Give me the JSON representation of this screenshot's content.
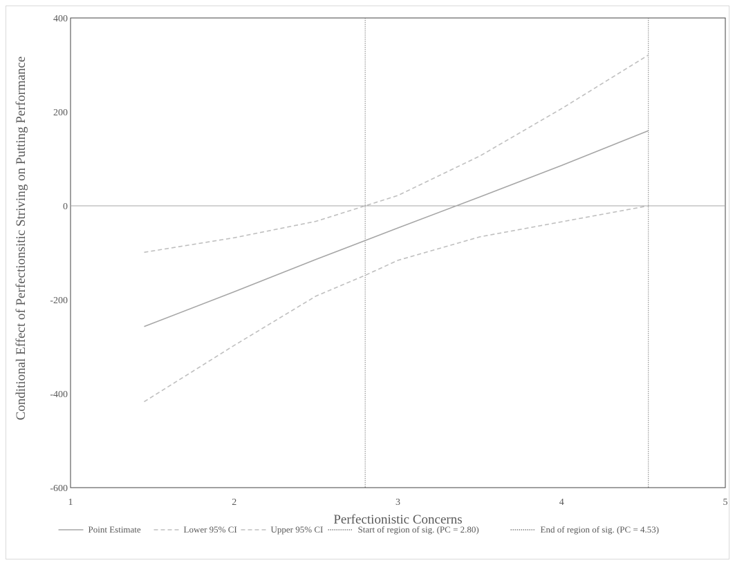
{
  "chart_data": {
    "type": "line",
    "title": "",
    "xlabel": "Perfectionistic Concerns",
    "ylabel": "Conditional Effect of Perfectionsitic Striving on Putting Performance",
    "xlim": [
      1,
      5
    ],
    "ylim": [
      -600,
      400
    ],
    "x_ticks": [
      "1",
      "2",
      "3",
      "4",
      "5"
    ],
    "y_ticks": [
      "400",
      "200",
      "0",
      "-200",
      "-400",
      "-600"
    ],
    "grid": false,
    "zero_line": true,
    "legend_position": "bottom",
    "series": [
      {
        "name": "Point Estimate",
        "style": "solid",
        "color": "#a6a6a6",
        "x": [
          1.45,
          2.0,
          2.5,
          2.8,
          3.0,
          3.5,
          4.0,
          4.53
        ],
        "y": [
          -257,
          -183,
          -114,
          -74,
          -47,
          19,
          86,
          160
        ]
      },
      {
        "name": "Lower 95% CI",
        "style": "dashed",
        "color": "#bfbfbf",
        "x": [
          1.45,
          2.0,
          2.5,
          2.8,
          3.0,
          3.5,
          4.0,
          4.53
        ],
        "y": [
          -417,
          -297,
          -192,
          -148,
          -116,
          -66,
          -34,
          0
        ]
      },
      {
        "name": "Upper 95% CI",
        "style": "dashed",
        "color": "#bfbfbf",
        "x": [
          1.45,
          2.0,
          2.5,
          2.8,
          3.0,
          3.5,
          4.0,
          4.53
        ],
        "y": [
          -99,
          -68,
          -33,
          0,
          22,
          106,
          207,
          321
        ]
      }
    ],
    "vertical_lines": [
      {
        "name": "Start of region of sig. (PC = 2.80)",
        "x": 2.8,
        "style": "dotted",
        "color": "#7f7f7f"
      },
      {
        "name": "End of region of sig. (PC = 4.53)",
        "x": 4.53,
        "style": "dotted",
        "color": "#7f7f7f"
      }
    ]
  }
}
